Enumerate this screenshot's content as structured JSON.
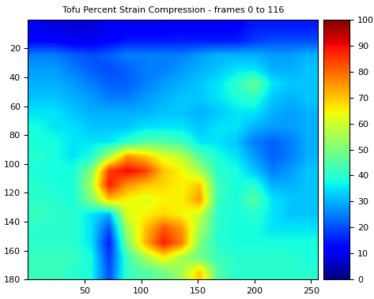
{
  "chart_data": {
    "type": "heatmap",
    "title": "Tofu Percent Strain Compression - frames 0 to 116",
    "color": "jet",
    "xlim": [
      0,
      256
    ],
    "ylim": [
      180,
      0
    ],
    "xticks": [
      50,
      100,
      150,
      200,
      250
    ],
    "yticks": [
      20,
      40,
      60,
      80,
      100,
      120,
      140,
      160,
      180
    ],
    "colorbar_range": [
      0,
      100
    ],
    "colorbar_ticks": [
      0,
      10,
      20,
      30,
      40,
      50,
      60,
      70,
      80,
      90,
      100
    ],
    "cells": [
      [
        10,
        8,
        8,
        8,
        10,
        10,
        10,
        10,
        12,
        12,
        12,
        12,
        15,
        15,
        15,
        15
      ],
      [
        12,
        12,
        10,
        10,
        12,
        15,
        15,
        15,
        15,
        15,
        15,
        15,
        18,
        20,
        20,
        20
      ],
      [
        25,
        25,
        22,
        20,
        22,
        25,
        25,
        25,
        25,
        28,
        30,
        30,
        30,
        28,
        28,
        30
      ],
      [
        28,
        28,
        25,
        22,
        20,
        22,
        25,
        25,
        28,
        30,
        32,
        35,
        35,
        30,
        30,
        32
      ],
      [
        30,
        30,
        28,
        25,
        22,
        22,
        25,
        28,
        30,
        32,
        35,
        40,
        48,
        35,
        32,
        32
      ],
      [
        32,
        32,
        30,
        28,
        25,
        25,
        28,
        30,
        32,
        32,
        35,
        38,
        40,
        32,
        30,
        32
      ],
      [
        35,
        35,
        32,
        30,
        30,
        30,
        30,
        32,
        32,
        30,
        32,
        35,
        35,
        30,
        28,
        30
      ],
      [
        38,
        35,
        35,
        32,
        32,
        32,
        35,
        35,
        35,
        32,
        35,
        35,
        30,
        28,
        28,
        30
      ],
      [
        38,
        38,
        35,
        35,
        35,
        40,
        45,
        45,
        42,
        35,
        35,
        32,
        25,
        22,
        25,
        30
      ],
      [
        40,
        38,
        35,
        38,
        55,
        75,
        70,
        62,
        58,
        45,
        38,
        35,
        28,
        22,
        25,
        30
      ],
      [
        38,
        38,
        38,
        50,
        85,
        90,
        85,
        70,
        65,
        55,
        40,
        38,
        32,
        25,
        28,
        32
      ],
      [
        40,
        38,
        38,
        55,
        88,
        75,
        70,
        68,
        65,
        70,
        42,
        38,
        40,
        30,
        30,
        32
      ],
      [
        40,
        40,
        38,
        50,
        70,
        65,
        62,
        65,
        65,
        75,
        42,
        38,
        45,
        35,
        32,
        32
      ],
      [
        42,
        40,
        40,
        35,
        30,
        62,
        65,
        68,
        65,
        60,
        40,
        38,
        40,
        35,
        32,
        32
      ],
      [
        40,
        40,
        40,
        35,
        20,
        55,
        70,
        82,
        75,
        55,
        40,
        38,
        38,
        35,
        35,
        35
      ],
      [
        40,
        40,
        40,
        35,
        15,
        50,
        72,
        88,
        78,
        50,
        40,
        38,
        38,
        38,
        38,
        38
      ],
      [
        42,
        42,
        42,
        38,
        18,
        42,
        55,
        65,
        55,
        48,
        42,
        40,
        40,
        40,
        40,
        38
      ],
      [
        42,
        42,
        40,
        38,
        20,
        42,
        45,
        48,
        55,
        70,
        45,
        40,
        40,
        40,
        40,
        40
      ]
    ]
  }
}
